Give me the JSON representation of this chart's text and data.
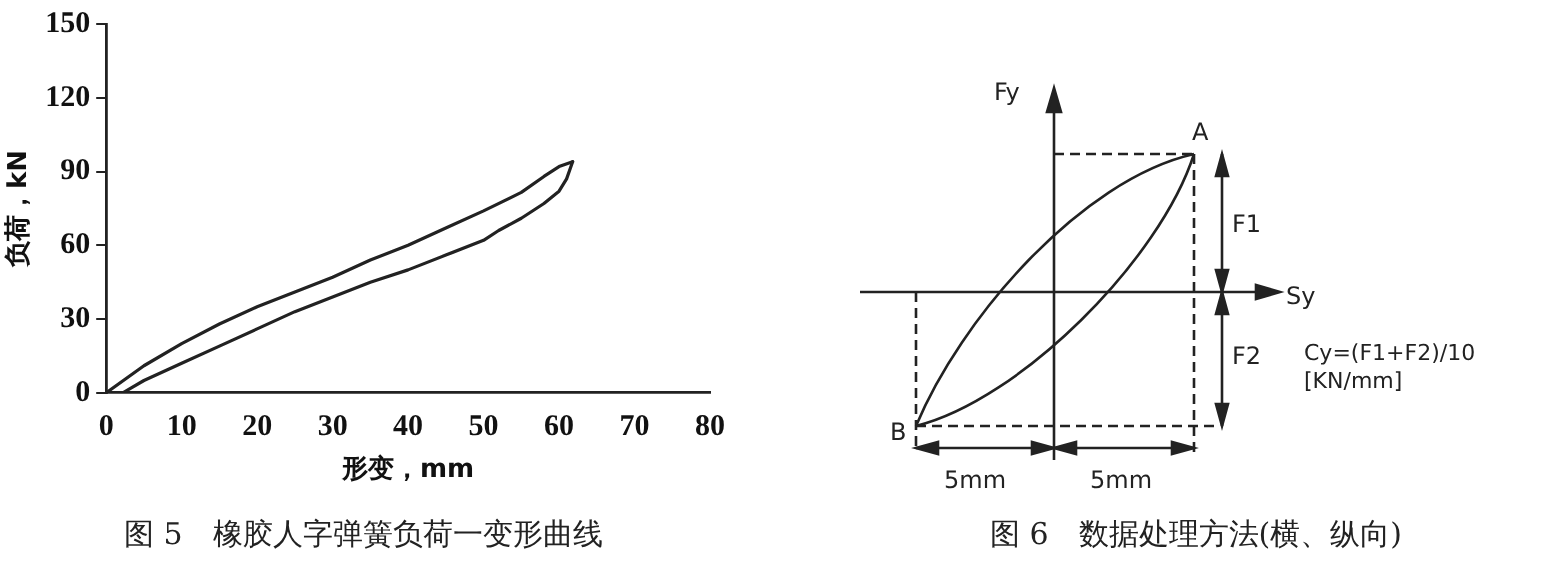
{
  "chart_data": [
    {
      "type": "line",
      "title": "图 5　橡胶人字弹簧负荷一变形曲线",
      "xlabel": "形变，mm",
      "ylabel": "负荷，kN",
      "xlim": [
        0,
        80
      ],
      "xticks": [
        0,
        10,
        20,
        30,
        40,
        50,
        60,
        70,
        80
      ],
      "ylim": [
        0,
        150
      ],
      "yticks": [
        0,
        30,
        60,
        90,
        120,
        150
      ],
      "grid": false,
      "legend": false,
      "marker": "none",
      "line_style": "solid",
      "series": [
        {
          "color": "#222222",
          "x": [
            0,
            5,
            10,
            15,
            20,
            25,
            30,
            35,
            40,
            45,
            50,
            55,
            58,
            60,
            61.8
          ],
          "values": [
            0,
            11,
            20,
            28,
            35,
            41,
            47,
            54,
            60,
            67,
            74,
            81.5,
            88,
            92,
            94
          ]
        },
        {
          "color": "#222222",
          "x": [
            2.2,
            5,
            10,
            15,
            20,
            25,
            30,
            35,
            40,
            45,
            50,
            52,
            55,
            58,
            60,
            61,
            61.8
          ],
          "values": [
            0,
            5,
            12,
            19,
            26,
            33,
            39,
            45,
            50,
            56,
            62,
            66,
            71,
            77,
            82,
            87,
            94
          ]
        }
      ]
    },
    {
      "type": "other",
      "title": "图 6　数据处理方法(横、纵向)",
      "annotations": [
        "Fy",
        "Sy",
        "A",
        "B",
        "F1",
        "F2",
        "Cy=(F1+F2)/10",
        "[KN/mm]",
        "5mm",
        "5mm"
      ]
    }
  ]
}
